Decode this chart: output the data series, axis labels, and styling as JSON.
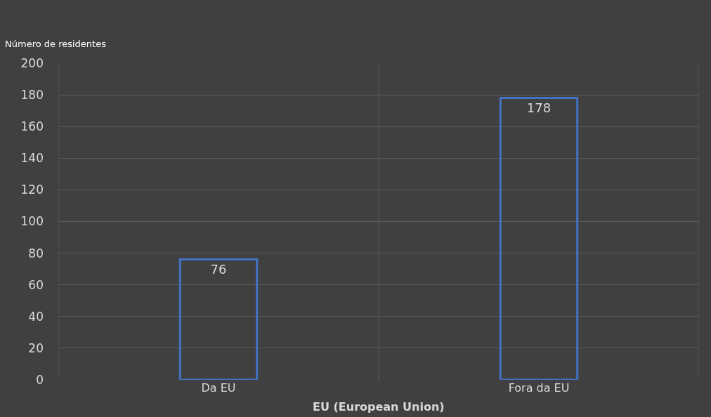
{
  "chart_data": {
    "type": "bar",
    "ylabel": "Número de residentes",
    "xlabel": "EU (European Union)",
    "categories": [
      "Da EU",
      "Fora da EU"
    ],
    "values": [
      76,
      178
    ],
    "color": "#4472c4",
    "ylim": [
      0,
      200
    ],
    "yticks": [
      0,
      20,
      40,
      60,
      80,
      100,
      120,
      140,
      160,
      180,
      200
    ],
    "grid": true,
    "data_labels": true
  }
}
